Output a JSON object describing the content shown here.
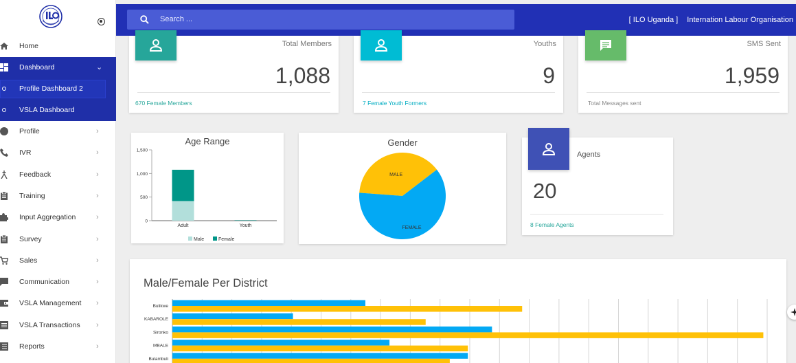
{
  "header": {
    "search_placeholder": "Search ...",
    "org_short": "[ ILO Uganda ]",
    "org_name": "Internation Labour Organisation"
  },
  "sidebar": {
    "items": [
      {
        "label": "Home",
        "icon": "home-icon"
      },
      {
        "label": "Dashboard",
        "icon": "dashboard-icon"
      },
      {
        "label": "Profile Dashboard 2",
        "icon": "circle-icon"
      },
      {
        "label": "VSLA Dashboard",
        "icon": "circle-icon"
      },
      {
        "label": "Profile",
        "icon": "user-circle-icon"
      },
      {
        "label": "IVR",
        "icon": "phone-icon"
      },
      {
        "label": "Feedback",
        "icon": "feedback-icon"
      },
      {
        "label": "Training",
        "icon": "clipboard-icon"
      },
      {
        "label": "Input Aggregation",
        "icon": "puzzle-icon"
      },
      {
        "label": "Survey",
        "icon": "clipboard-icon"
      },
      {
        "label": "Sales",
        "icon": "cart-icon"
      },
      {
        "label": "Communication",
        "icon": "message-icon"
      },
      {
        "label": "VSLA Management",
        "icon": "wallet-icon"
      },
      {
        "label": "VSLA Transactions",
        "icon": "list-icon"
      },
      {
        "label": "Reports",
        "icon": "report-icon"
      }
    ]
  },
  "stats": {
    "members": {
      "label": "Total Members",
      "value": "1,088",
      "foot": "670 Female Members",
      "color": "#26a69a"
    },
    "youths": {
      "label": "Youths",
      "value": "9",
      "foot": "7 Female Youth Formers",
      "color": "#00bcd4"
    },
    "sms": {
      "label": "SMS Sent",
      "value": "1,959",
      "foot": "Total Messages sent",
      "color": "#66bb6a"
    },
    "agents": {
      "label": "Agents",
      "value": "20",
      "foot": "8 Female Agents",
      "color": "#3f51b5"
    }
  },
  "chart_data": [
    {
      "type": "bar",
      "stacked": true,
      "title": "Age Range",
      "categories": [
        "Adult",
        "Youth"
      ],
      "series": [
        {
          "name": "Male",
          "values": [
            416,
            2
          ],
          "color": "#b2dfdb"
        },
        {
          "name": "Female",
          "values": [
            663,
            7
          ],
          "color": "#009688"
        }
      ],
      "ylim": [
        0,
        1500
      ],
      "yticks": [
        0,
        500,
        "1,000",
        "1,500"
      ],
      "legend": "bottom"
    },
    {
      "type": "pie",
      "title": "Gender",
      "slices": [
        {
          "label": "MALE",
          "value": 418,
          "color": "#ffc107"
        },
        {
          "label": "FEMALE",
          "value": 670,
          "color": "#03a9f4"
        }
      ]
    },
    {
      "type": "bar",
      "orientation": "horizontal",
      "title": "Male/Female Per District",
      "categories": [
        "Bulikwe",
        "KABAROLE",
        "Sironko",
        "MBALE",
        "Bulambuli"
      ],
      "series": [
        {
          "name": "Male",
          "values": [
            32,
            20,
            53,
            36,
            49
          ],
          "color": "#03a9f4"
        },
        {
          "name": "Female",
          "values": [
            58,
            42,
            98,
            49,
            46
          ],
          "color": "#ffc107"
        }
      ],
      "xlim": [
        0,
        100
      ],
      "grid": true
    }
  ]
}
